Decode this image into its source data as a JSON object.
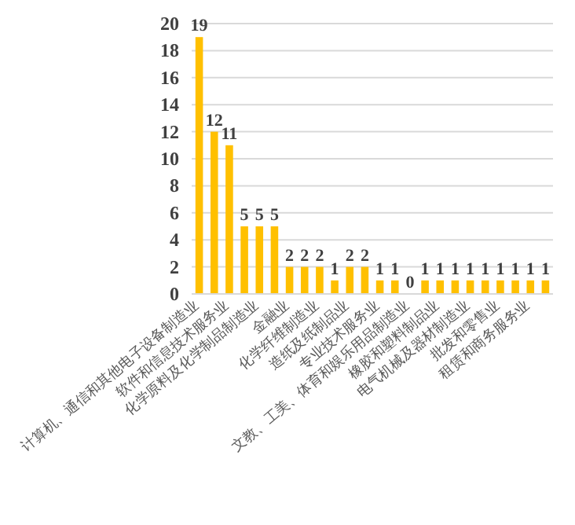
{
  "chart_data": {
    "type": "bar",
    "categories": [
      "计算机、通信和其他电子设备制造业",
      null,
      "软件和信息技术服务业",
      null,
      "化学原料及化学制品制造业",
      null,
      "金融业",
      null,
      "化学纤维制造业",
      null,
      "造纸及纸制品业",
      null,
      "专业技术服务业",
      null,
      "文教、工美、体育和娱乐用品制造业",
      null,
      "橡胶和塑料制品业",
      null,
      "电气机械及器材制造业",
      null,
      "批发和零售业",
      null,
      "租赁和商务服务业",
      null
    ],
    "values": [
      19,
      12,
      11,
      5,
      5,
      5,
      2,
      2,
      2,
      1,
      2,
      2,
      1,
      1,
      0,
      1,
      1,
      1,
      1,
      1,
      1,
      1,
      1,
      1
    ],
    "color": "#ffc000",
    "ylim": [
      0,
      20
    ],
    "yticks": [
      0,
      2,
      4,
      6,
      8,
      10,
      12,
      14,
      16,
      18,
      20
    ],
    "grid": "y",
    "data_labels": true
  }
}
